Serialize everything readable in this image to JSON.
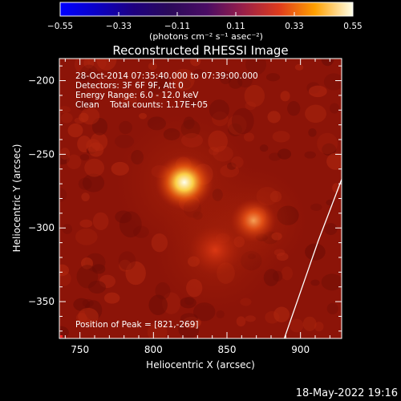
{
  "chart_data": {
    "type": "heatmap",
    "title": "Reconstructed RHESSI Image",
    "xlabel": "Heliocentric X (arcsec)",
    "ylabel": "Heliocentric Y (arcsec)",
    "xlim": [
      736,
      928
    ],
    "ylim": [
      -375,
      -185
    ],
    "x_ticks": [
      750,
      800,
      850,
      900
    ],
    "x_tick_labels": [
      "750",
      "800",
      "850",
      "900"
    ],
    "y_ticks": [
      -200,
      -250,
      -300,
      -350
    ],
    "y_tick_labels": [
      "−200",
      "−250",
      "−300",
      "−350"
    ],
    "colorbar": {
      "range": [
        -0.55,
        0.55
      ],
      "ticks": [
        -0.55,
        -0.33,
        -0.11,
        0.11,
        0.33,
        0.55
      ],
      "tick_labels": [
        "−0.55",
        "−0.33",
        "−0.11",
        "0.11",
        "0.33",
        "0.55"
      ],
      "unit_text": "(photons cm⁻² s⁻¹ asec⁻²)",
      "colormap": "red-temperature"
    },
    "annotations": [
      "28-Oct-2014 07:35:40.000 to 07:39:00.000",
      "Detectors: 3F 6F 9F, Att 0",
      "Energy Range: 6.0 - 12.0 keV",
      "Clean    Total counts: 1.17E+05"
    ],
    "peak_label": "Position of Peak = [821,-269]",
    "sources": [
      {
        "x": 821,
        "y": -269,
        "intensity": 0.55,
        "sigma": 9
      },
      {
        "x": 868,
        "y": -295,
        "intensity": 0.3,
        "sigma": 7
      },
      {
        "x": 842,
        "y": -315,
        "intensity": 0.16,
        "sigma": 8
      }
    ],
    "limb_curve": [
      {
        "x": 928,
        "y": -267
      },
      {
        "x": 912,
        "y": -309
      },
      {
        "x": 889,
        "y": -375
      }
    ],
    "timestamp": "18-May-2022 19:16"
  },
  "colors": {
    "background": "#000000",
    "field": "#8c1408",
    "limb": "#ffffff"
  }
}
